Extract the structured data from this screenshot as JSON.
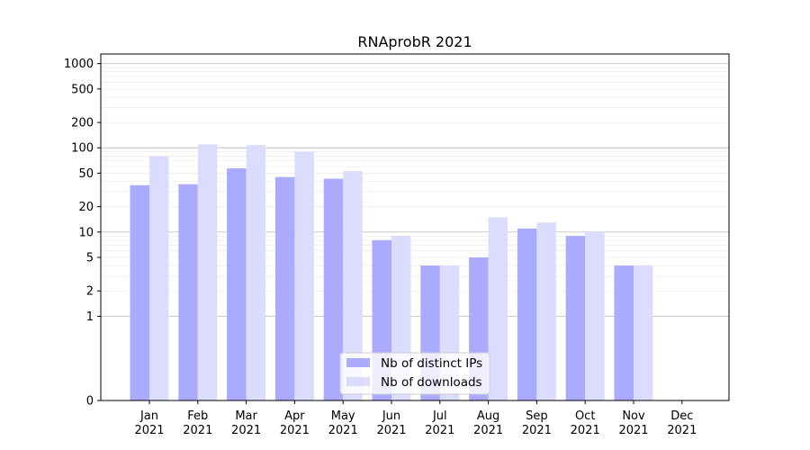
{
  "chart_data": {
    "type": "bar",
    "title": "RNAprobR 2021",
    "xlabel": "",
    "ylabel": "",
    "y_scale": "symlog",
    "ylim": [
      0,
      1300
    ],
    "y_ticks": [
      0,
      1,
      2,
      5,
      10,
      20,
      50,
      100,
      200,
      500,
      1000
    ],
    "grid": "horizontal",
    "legend_position": "lower-center",
    "categories": [
      "Jan\n2021",
      "Feb\n2021",
      "Mar\n2021",
      "Apr\n2021",
      "May\n2021",
      "Jun\n2021",
      "Jul\n2021",
      "Aug\n2021",
      "Sep\n2021",
      "Oct\n2021",
      "Nov\n2021",
      "Dec\n2021"
    ],
    "series": [
      {
        "name": "Nb of distinct IPs",
        "color": "#aaaaff",
        "values": [
          36,
          37,
          57,
          45,
          43,
          8,
          4,
          5,
          11,
          9,
          4,
          0
        ]
      },
      {
        "name": "Nb of downloads",
        "color": "#dcdcff",
        "values": [
          79,
          110,
          108,
          90,
          53,
          9,
          4,
          15,
          13,
          10,
          4,
          0
        ]
      }
    ]
  }
}
